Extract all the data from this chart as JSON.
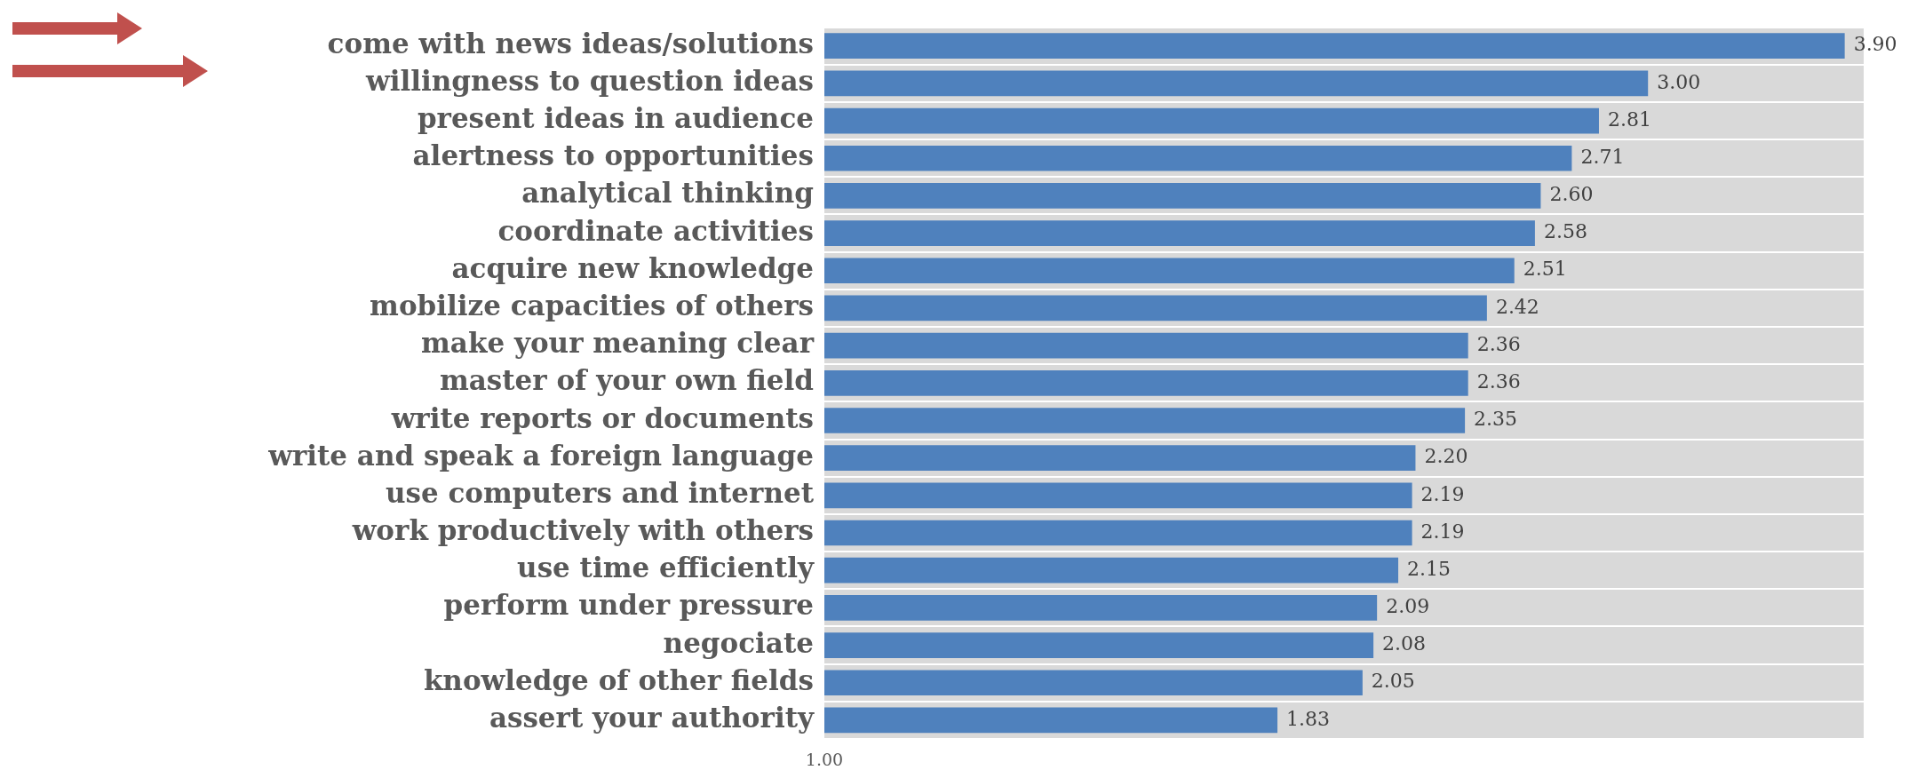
{
  "chart_data": {
    "type": "bar",
    "orientation": "horizontal",
    "log": "x",
    "categories": [
      "come with news ideas/solutions",
      "willingness to question ideas",
      "present ideas in audience",
      "alertness to opportunities",
      "analytical thinking",
      "coordinate activities",
      "acquire new knowledge",
      "mobilize capacities of others",
      "make your meaning clear",
      "master of your own field",
      "write reports or documents",
      "write and speak a foreign language",
      "use computers and internet",
      "work productively with others",
      "use time efficiently",
      "perform under pressure",
      "negociate",
      "knowledge of other fields",
      "assert your authority"
    ],
    "values": [
      3.9,
      3.0,
      2.81,
      2.71,
      2.6,
      2.58,
      2.51,
      2.42,
      2.36,
      2.36,
      2.35,
      2.2,
      2.19,
      2.19,
      2.15,
      2.09,
      2.08,
      2.05,
      1.83
    ],
    "value_labels": [
      "3.90",
      "3.00",
      "2.81",
      "2.71",
      "2.60",
      "2.58",
      "2.51",
      "2.42",
      "2.36",
      "2.36",
      "2.35",
      "2.20",
      "2.19",
      "2.19",
      "2.15",
      "2.09",
      "2.08",
      "2.05",
      "1.83"
    ],
    "color": "#4f81bd",
    "xlim": [
      1,
      4
    ],
    "annotations": [
      "1.00"
    ],
    "grid": "y",
    "legend": false
  }
}
